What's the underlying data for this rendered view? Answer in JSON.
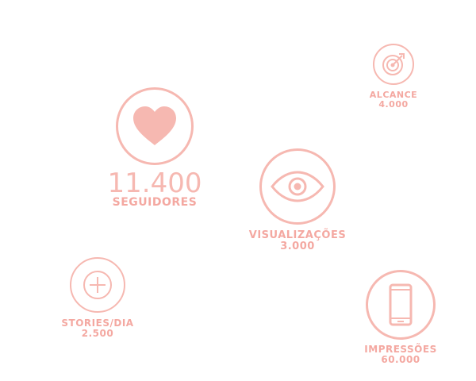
{
  "accent_color": "#f6b8b1",
  "text_color": "#f4a8a1",
  "stats": {
    "seguidores": {
      "icon": "heart-icon",
      "value": "11.400",
      "label": "SEGUIDORES"
    },
    "alcance": {
      "icon": "target-icon",
      "label": "ALCANCE",
      "value": "4.000"
    },
    "visualizacoes": {
      "icon": "eye-icon",
      "label": "VISUALIZAÇÕES",
      "value": "3.000"
    },
    "stories": {
      "icon": "plus-circle-icon",
      "label": "STORIES/DIA",
      "value": "2.500"
    },
    "impressoes": {
      "icon": "smartphone-icon",
      "label": "IMPRESSÕES",
      "value": "60.000"
    }
  }
}
